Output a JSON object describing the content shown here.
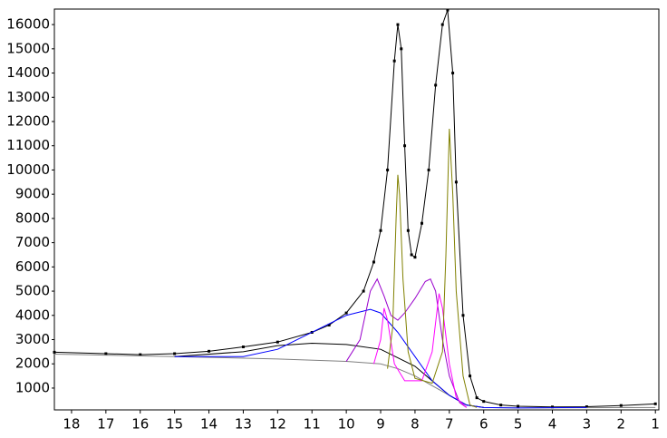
{
  "chart_data": {
    "type": "line",
    "xlim": [
      18.5,
      0.9
    ],
    "ylim": [
      100,
      16640
    ],
    "xticks": [
      18,
      17,
      16,
      15,
      14,
      13,
      12,
      11,
      10,
      9,
      8,
      7,
      6,
      5,
      4,
      3,
      2,
      1
    ],
    "yticks": [
      1000,
      2000,
      3000,
      4000,
      5000,
      6000,
      7000,
      8000,
      9000,
      10000,
      11000,
      12000,
      13000,
      14000,
      15000,
      16000
    ],
    "series": [
      {
        "color": "#000000",
        "markers": true,
        "x": [
          18.5,
          17,
          16,
          15,
          14,
          13,
          12,
          11,
          10.5,
          10,
          9.5,
          9.2,
          9,
          8.8,
          8.6,
          8.5,
          8.4,
          8.3,
          8.2,
          8.1,
          8,
          7.8,
          7.6,
          7.4,
          7.2,
          7.05,
          6.9,
          6.8,
          6.6,
          6.4,
          6.2,
          6,
          5.5,
          5,
          4,
          3,
          2,
          1
        ],
        "values": [
          2480,
          2420,
          2380,
          2420,
          2520,
          2700,
          2900,
          3300,
          3600,
          4100,
          5000,
          6200,
          7500,
          10000,
          14500,
          16000,
          15000,
          11000,
          7500,
          6500,
          6400,
          7800,
          10000,
          13500,
          16000,
          16600,
          14000,
          9500,
          4000,
          1500,
          600,
          450,
          300,
          250,
          220,
          230,
          280,
          350
        ]
      },
      {
        "color": "#808080",
        "x": [
          18.5,
          15,
          12,
          10,
          9,
          8.5,
          8,
          7.5,
          7,
          6.5,
          6,
          5,
          1
        ],
        "values": [
          2400,
          2300,
          2200,
          2100,
          2000,
          1800,
          1500,
          1100,
          700,
          300,
          200,
          180,
          200
        ]
      },
      {
        "color": "#000000",
        "x": [
          15,
          13,
          12,
          11,
          10,
          9,
          8,
          7.5,
          7,
          6.5,
          6
        ],
        "values": [
          2300,
          2500,
          2750,
          2850,
          2800,
          2600,
          1900,
          1300,
          700,
          300,
          200
        ]
      },
      {
        "color": "#0000ff",
        "x": [
          15,
          13,
          12,
          11,
          10,
          9.3,
          9,
          8.5,
          8,
          7.5,
          7,
          6.5,
          6,
          5,
          3
        ],
        "values": [
          2300,
          2300,
          2600,
          3300,
          4000,
          4250,
          4100,
          3300,
          2300,
          1300,
          700,
          300,
          200,
          180,
          200
        ]
      },
      {
        "color": "#9900cc",
        "x": [
          10,
          9.6,
          9.3,
          9.1,
          8.9,
          8.7,
          8.5,
          8.3,
          8,
          7.7,
          7.55,
          7.4,
          7.2,
          7,
          6.7,
          6.5
        ],
        "values": [
          2100,
          3000,
          5000,
          5500,
          4800,
          4000,
          3800,
          4100,
          4700,
          5400,
          5500,
          5000,
          3000,
          1500,
          400,
          200
        ]
      },
      {
        "color": "#ff00ff",
        "x": [
          9.2,
          9,
          8.9,
          8.8,
          8.6,
          8.3,
          7.8,
          7.5,
          7.3,
          7.2,
          7,
          6.8,
          6.5
        ],
        "values": [
          2000,
          3000,
          4300,
          3800,
          2000,
          1300,
          1300,
          2500,
          4900,
          4300,
          2000,
          600,
          200
        ]
      },
      {
        "color": "#808000",
        "x": [
          8.8,
          8.65,
          8.55,
          8.5,
          8.45,
          8.35,
          8.2,
          8,
          7.5,
          7.2,
          7.1,
          7,
          6.9,
          6.8,
          6.6,
          6.4,
          6.2
        ],
        "values": [
          1800,
          3500,
          8000,
          9800,
          9000,
          5500,
          2500,
          1400,
          1200,
          2500,
          6500,
          11700,
          9000,
          5000,
          1500,
          300,
          200
        ]
      }
    ]
  }
}
